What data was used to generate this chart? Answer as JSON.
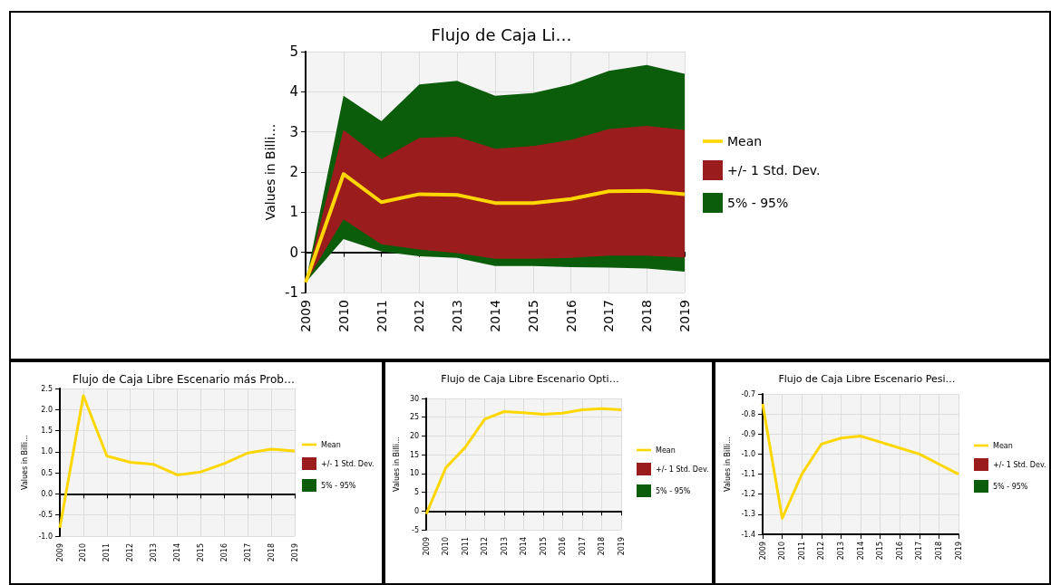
{
  "chart_data": [
    {
      "type": "line",
      "title": "Flujo de Caja Li…",
      "ylabel": "Values in Billi…",
      "categories": [
        "2009",
        "2010",
        "2011",
        "2012",
        "2013",
        "2014",
        "2015",
        "2016",
        "2017",
        "2018",
        "2019"
      ],
      "ylim": [
        -1,
        5
      ],
      "yticks": [
        -1,
        0,
        1,
        2,
        3,
        4,
        5
      ],
      "grid": true,
      "legend": "right",
      "series": [
        {
          "name": "Mean",
          "type": "line",
          "color": "#ffd700",
          "values": [
            -0.75,
            1.95,
            1.25,
            1.45,
            1.43,
            1.23,
            1.23,
            1.33,
            1.52,
            1.53,
            1.45
          ]
        },
        {
          "name": "+/- 1 Std. Dev.",
          "type": "area",
          "color": "#9b1c1c",
          "values": [
            null,
            null,
            null,
            null,
            null,
            null,
            null,
            null,
            null,
            null,
            null
          ],
          "lower": [
            -0.75,
            0.82,
            0.2,
            0.07,
            -0.02,
            -0.16,
            -0.16,
            -0.14,
            -0.08,
            -0.08,
            -0.13
          ],
          "upper": [
            -0.75,
            3.05,
            2.32,
            2.85,
            2.88,
            2.58,
            2.65,
            2.8,
            3.07,
            3.15,
            3.05
          ]
        },
        {
          "name": "5% - 95%",
          "type": "area",
          "color": "#0b5d0b",
          "values": [
            null,
            null,
            null,
            null,
            null,
            null,
            null,
            null,
            null,
            null,
            null
          ],
          "lower": [
            -0.75,
            0.33,
            0.02,
            -0.1,
            -0.14,
            -0.34,
            -0.34,
            -0.37,
            -0.38,
            -0.4,
            -0.48
          ],
          "upper": [
            -0.75,
            3.9,
            3.27,
            4.18,
            4.27,
            3.9,
            3.97,
            4.18,
            4.52,
            4.67,
            4.45
          ]
        }
      ]
    },
    {
      "type": "line",
      "title": "Flujo de Caja Libre Escenario más Prob…",
      "ylabel": "Values in Billi…",
      "categories": [
        "2009",
        "2010",
        "2011",
        "2012",
        "2013",
        "2014",
        "2015",
        "2016",
        "2017",
        "2018",
        "2019"
      ],
      "ylim": [
        -1,
        2.5
      ],
      "yticks": [
        {
          "value": -1,
          "label": "-1.0"
        },
        -0.5,
        {
          "value": 0,
          "label": "0.0"
        },
        0.5,
        {
          "value": 1,
          "label": "1.0"
        },
        1.5,
        {
          "value": 2,
          "label": "2.0"
        },
        2.5
      ],
      "grid": true,
      "legend": "right",
      "series": [
        {
          "name": "Mean",
          "type": "line",
          "color": "#ffd700",
          "values": [
            -0.8,
            2.33,
            0.9,
            0.75,
            0.7,
            0.45,
            0.52,
            0.72,
            0.97,
            1.06,
            1.02
          ]
        },
        {
          "name": "+/- 1 Std. Dev.",
          "type": "area",
          "color": "#9b1c1c",
          "values": [
            null,
            null,
            null,
            null,
            null,
            null,
            null,
            null,
            null,
            null,
            null
          ]
        },
        {
          "name": "5% - 95%",
          "type": "area",
          "color": "#0b5d0b",
          "values": [
            null,
            null,
            null,
            null,
            null,
            null,
            null,
            null,
            null,
            null,
            null
          ]
        }
      ]
    },
    {
      "type": "line",
      "title": "Flujo de Caja Libre Escenario Opti…",
      "ylabel": "Values in Billi…",
      "categories": [
        "2009",
        "2010",
        "2011",
        "2012",
        "2013",
        "2014",
        "2015",
        "2016",
        "2017",
        "2018",
        "2019"
      ],
      "ylim": [
        -5,
        30
      ],
      "yticks": [
        -5,
        0,
        5,
        10,
        15,
        20,
        25,
        30
      ],
      "grid": true,
      "legend": "right",
      "series": [
        {
          "name": "Mean",
          "type": "line",
          "color": "#ffd700",
          "values": [
            -0.8,
            11.5,
            17,
            24.5,
            26.5,
            26.2,
            25.8,
            26.1,
            27,
            27.3,
            27
          ]
        },
        {
          "name": "+/- 1 Std. Dev.",
          "type": "area",
          "color": "#9b1c1c",
          "values": [
            null,
            null,
            null,
            null,
            null,
            null,
            null,
            null,
            null,
            null,
            null
          ]
        },
        {
          "name": "5% - 95%",
          "type": "area",
          "color": "#0b5d0b",
          "values": [
            null,
            null,
            null,
            null,
            null,
            null,
            null,
            null,
            null,
            null,
            null
          ]
        }
      ]
    },
    {
      "type": "line",
      "title": "Flujo de Caja Libre Escenario Pesi…",
      "ylabel": "Values in Billi…",
      "categories": [
        "2009",
        "2010",
        "2011",
        "2012",
        "2013",
        "2014",
        "2015",
        "2016",
        "2017",
        "2018",
        "2019"
      ],
      "ylim": [
        -1.4,
        -0.7
      ],
      "yticks": [
        -1.4,
        -1.3,
        -1.2,
        -1.1,
        {
          "value": -1,
          "label": "-1.0"
        },
        -0.9,
        -0.8,
        -0.7
      ],
      "grid": true,
      "legend": "right",
      "series": [
        {
          "name": "Mean",
          "type": "line",
          "color": "#ffd700",
          "values": [
            -0.75,
            -1.32,
            -1.1,
            -0.95,
            -0.92,
            -0.91,
            -0.94,
            -0.97,
            -1.0,
            -1.05,
            -1.1
          ]
        },
        {
          "name": "+/- 1 Std. Dev.",
          "type": "area",
          "color": "#9b1c1c",
          "values": [
            null,
            null,
            null,
            null,
            null,
            null,
            null,
            null,
            null,
            null,
            null
          ]
        },
        {
          "name": "5% - 95%",
          "type": "area",
          "color": "#0b5d0b",
          "values": [
            null,
            null,
            null,
            null,
            null,
            null,
            null,
            null,
            null,
            null,
            null
          ]
        }
      ]
    }
  ]
}
